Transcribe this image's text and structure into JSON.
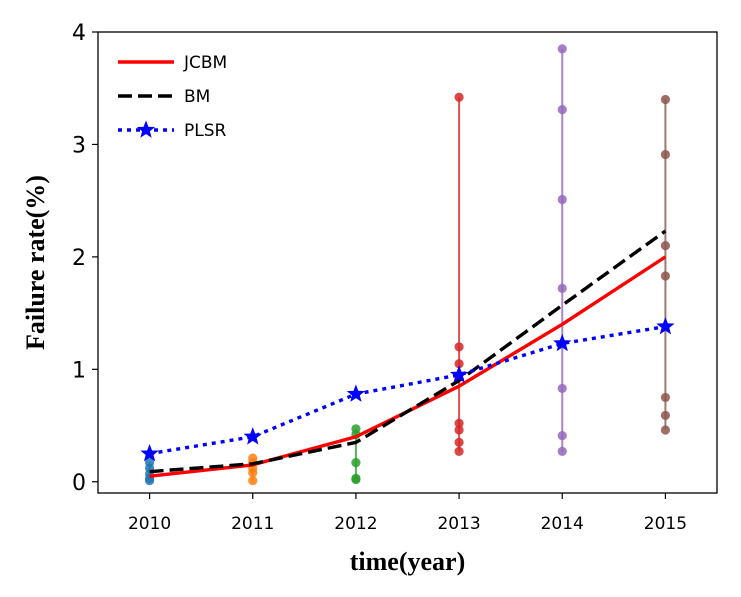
{
  "chart_data": {
    "type": "line",
    "xlabel": "time(year)",
    "ylabel": "Failure rate(%)",
    "xlim": [
      2009.5,
      2015.5
    ],
    "ylim": [
      -0.1,
      4.0
    ],
    "xticks": [
      "2010",
      "2011",
      "2012",
      "2013",
      "2014",
      "2015"
    ],
    "yticks": [
      "0",
      "1",
      "2",
      "3",
      "4"
    ],
    "legend_position": "top-left",
    "grid": false,
    "series": [
      {
        "name": "JCBM",
        "color": "#ff0000",
        "style": "solid",
        "x": [
          2010,
          2011,
          2012,
          2013,
          2014,
          2015
        ],
        "y": [
          0.05,
          0.15,
          0.4,
          0.85,
          1.4,
          2.0
        ]
      },
      {
        "name": "BM",
        "color": "#000000",
        "style": "dashed",
        "x": [
          2010,
          2011,
          2012,
          2013,
          2014,
          2015
        ],
        "y": [
          0.09,
          0.16,
          0.35,
          0.9,
          1.57,
          2.23
        ]
      },
      {
        "name": "PLSR",
        "color": "#0000ff",
        "style": "dotted",
        "marker": "star",
        "x": [
          2010,
          2011,
          2012,
          2013,
          2014,
          2015
        ],
        "y": [
          0.25,
          0.4,
          0.78,
          0.95,
          1.23,
          1.38
        ]
      }
    ],
    "observations": [
      {
        "x": 2010,
        "color": "#1f77b4",
        "y": [
          0.01,
          0.03,
          0.07,
          0.12,
          0.17
        ]
      },
      {
        "x": 2011,
        "color": "#ff7f0e",
        "y": [
          0.01,
          0.08,
          0.12,
          0.17,
          0.21
        ]
      },
      {
        "x": 2012,
        "color": "#2ca02c",
        "y": [
          0.02,
          0.03,
          0.17,
          0.42,
          0.47
        ]
      },
      {
        "x": 2013,
        "color": "#d62728",
        "y": [
          0.27,
          0.35,
          0.46,
          0.52,
          1.05,
          1.2,
          3.42
        ]
      },
      {
        "x": 2014,
        "color": "#9467bd",
        "y": [
          0.27,
          0.41,
          0.83,
          1.72,
          2.51,
          3.31,
          3.85
        ]
      },
      {
        "x": 2015,
        "color": "#8c564b",
        "y": [
          0.46,
          0.59,
          0.75,
          1.83,
          2.1,
          2.91,
          3.4
        ]
      }
    ]
  }
}
